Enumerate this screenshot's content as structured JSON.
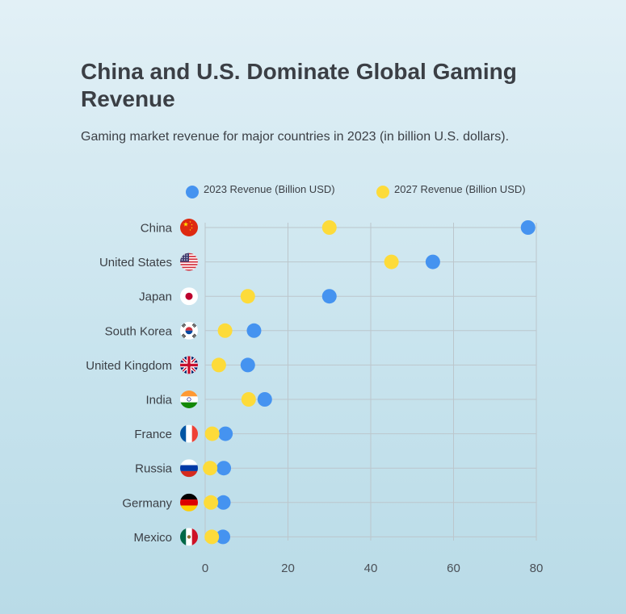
{
  "chart_data": {
    "type": "scatter",
    "title": "China and U.S. Dominate Global Gaming Revenue",
    "subtitle": "Gaming market revenue for major countries in 2023 (in billion U.S. dollars).",
    "xlim": [
      0,
      80
    ],
    "xticks": [
      "0",
      "20",
      "40",
      "60",
      "80"
    ],
    "grid": true,
    "legend_position": "top-center",
    "categories": [
      "China",
      "United States",
      "Japan",
      "South Korea",
      "United Kingdom",
      "India",
      "France",
      "Russia",
      "Germany",
      "Mexico"
    ],
    "flags": [
      "china-flag",
      "usa-flag",
      "japan-flag",
      "south-korea-flag",
      "uk-flag",
      "india-flag",
      "france-flag",
      "russia-flag",
      "germany-flag",
      "mexico-flag"
    ],
    "series": [
      {
        "name": "2023 Revenue (Billion USD)",
        "color": "#4593f0",
        "values": [
          78,
          55,
          30,
          11.8,
          10.3,
          14.4,
          4.9,
          4.5,
          4.4,
          4.3
        ]
      },
      {
        "name": "2027 Revenue (Billion USD)",
        "color": "#fddb3a",
        "values": [
          30,
          45,
          10.3,
          4.8,
          3.3,
          10.5,
          1.7,
          1.2,
          1.4,
          1.6
        ]
      }
    ]
  }
}
